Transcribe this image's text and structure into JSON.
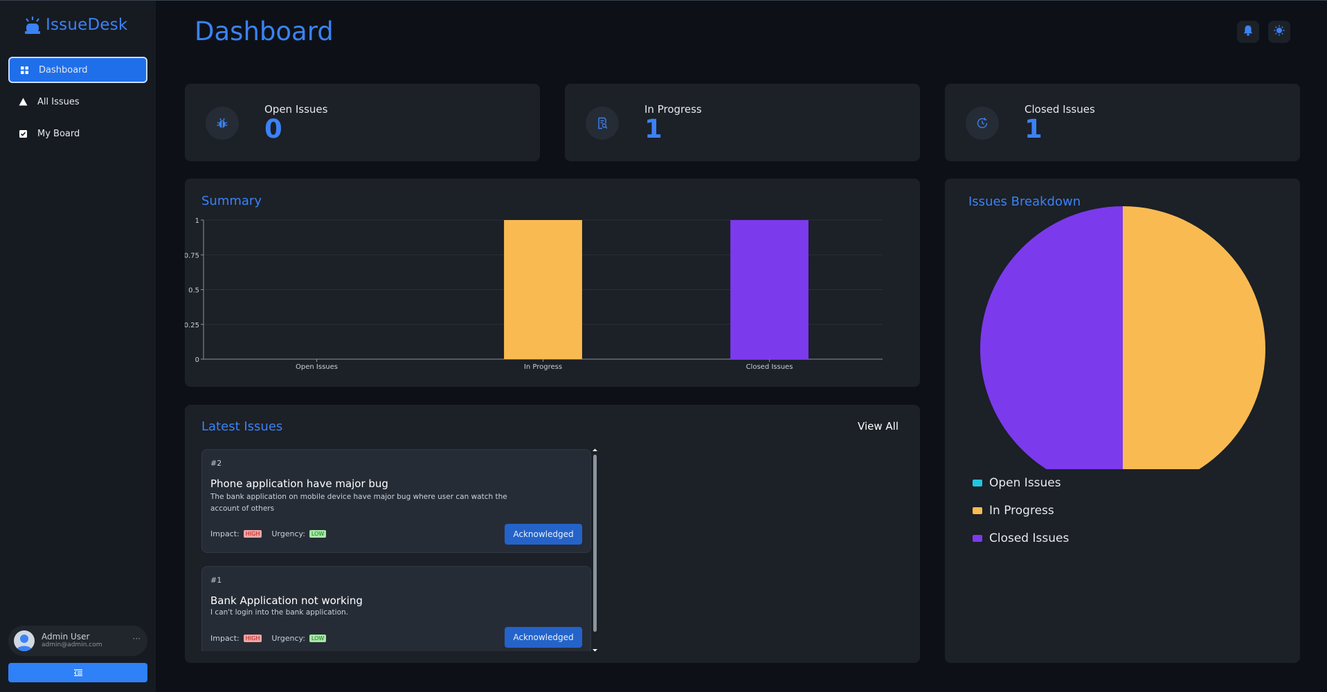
{
  "app": {
    "name": "IssueDesk"
  },
  "sidebar": {
    "items": [
      {
        "label": "Dashboard",
        "icon": "grid-icon",
        "active": true
      },
      {
        "label": "All Issues",
        "icon": "alert-triangle-icon",
        "active": false
      },
      {
        "label": "My Board",
        "icon": "checkbox-icon",
        "active": false
      }
    ],
    "user": {
      "name": "Admin User",
      "email": "admin@admin.com",
      "more": "···"
    }
  },
  "header": {
    "title": "Dashboard"
  },
  "stats": [
    {
      "label": "Open Issues",
      "value": "0",
      "icon": "bug-icon"
    },
    {
      "label": "In Progress",
      "value": "1",
      "icon": "document-search-icon"
    },
    {
      "label": "Closed Issues",
      "value": "1",
      "icon": "clock-check-icon"
    }
  ],
  "summary": {
    "title": "Summary"
  },
  "latest": {
    "title": "Latest Issues",
    "view_all": "View All",
    "issues": [
      {
        "number": "#2",
        "title": "Phone application have major bug",
        "description": "The bank application on mobile device have major bug where user can watch the account of others",
        "impact_label": "Impact:",
        "impact": "HIGH",
        "urgency_label": "Urgency:",
        "urgency": "LOW",
        "status": "Acknowledged"
      },
      {
        "number": "#1",
        "title": "Bank Application not working",
        "description": "I can't login into the bank application.",
        "impact_label": "Impact:",
        "impact": "HIGH",
        "urgency_label": "Urgency:",
        "urgency": "LOW",
        "status": "Acknowledged"
      }
    ]
  },
  "breakdown": {
    "title": "Issues Breakdown"
  },
  "colors": {
    "accent": "#3b82f6",
    "open": "#22c5e0",
    "in_progress": "#f9bb51",
    "closed": "#7c3aed"
  },
  "chart_data": [
    {
      "type": "bar",
      "title": "Summary",
      "categories": [
        "Open Issues",
        "In Progress",
        "Closed Issues"
      ],
      "values": [
        0,
        1,
        1
      ],
      "colors": [
        "#22c5e0",
        "#f9bb51",
        "#7c3aed"
      ],
      "ylim": [
        0,
        1
      ],
      "yticks": [
        "0",
        "0.25",
        "0.5",
        "0.75",
        "1"
      ],
      "grid": true
    },
    {
      "type": "pie",
      "title": "Issues Breakdown",
      "labels": [
        "Open Issues",
        "In Progress",
        "Closed Issues"
      ],
      "values": [
        0,
        1,
        1
      ],
      "colors": [
        "#22c5e0",
        "#f9bb51",
        "#7c3aed"
      ],
      "legend": "bottom-left"
    }
  ]
}
